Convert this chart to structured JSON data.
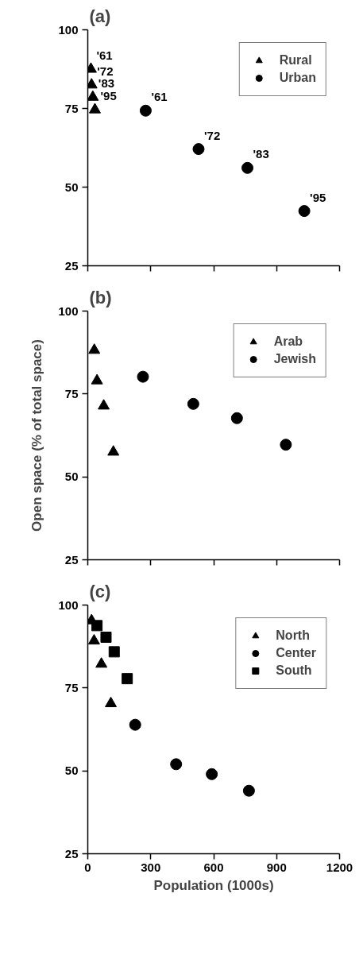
{
  "chart_data": [
    {
      "type": "scatter",
      "title": "(a)",
      "xlim": [
        0,
        1200
      ],
      "ylim": [
        25,
        100
      ],
      "xticks": [
        {
          "value": 0,
          "label": null
        },
        {
          "value": 300,
          "label": null
        },
        {
          "value": 600,
          "label": null
        },
        {
          "value": 900,
          "label": null
        },
        {
          "value": 1200,
          "label": null
        }
      ],
      "yticks": [
        25,
        50,
        75,
        100
      ],
      "tick_labels": "y",
      "legend": "top right",
      "series": [
        {
          "name": "Rural",
          "color": "#000000",
          "marker": "triangle",
          "x": [
            15,
            18,
            24,
            34
          ],
          "values": [
            87.5,
            82.5,
            78.6,
            74.6
          ]
        },
        {
          "name": "Urban",
          "color": "#000000",
          "marker": "circle",
          "x": [
            276,
            528,
            761,
            1032
          ],
          "values": [
            74.3,
            62.1,
            56.1,
            42.4
          ]
        }
      ],
      "annotations": [
        {
          "text": "'61",
          "x": 15,
          "y": 87.5
        },
        {
          "text": "'72",
          "x": 18,
          "y": 82.5
        },
        {
          "text": "'83",
          "x": 24,
          "y": 78.6
        },
        {
          "text": "'95",
          "x": 34,
          "y": 74.6
        },
        {
          "text": "'61",
          "x": 276,
          "y": 74.3
        },
        {
          "text": "'72",
          "x": 528,
          "y": 62.1
        },
        {
          "text": "'83",
          "x": 761,
          "y": 56.1
        },
        {
          "text": "'95",
          "x": 1032,
          "y": 42.4
        }
      ]
    },
    {
      "type": "scatter",
      "title": "(b)",
      "ylabel": "Open space (% of total space)",
      "xlim": [
        0,
        1200
      ],
      "ylim": [
        25,
        100
      ],
      "xticks": [
        {
          "value": 0,
          "label": null
        },
        {
          "value": 300,
          "label": null
        },
        {
          "value": 600,
          "label": null
        },
        {
          "value": 900,
          "label": null
        },
        {
          "value": 1200,
          "label": null
        }
      ],
      "yticks": [
        25,
        50,
        75,
        100
      ],
      "tick_labels": "y",
      "legend": "top right",
      "series": [
        {
          "name": "Arab",
          "color": "#000000",
          "marker": "triangle",
          "x": [
            31,
            44,
            76,
            122
          ],
          "values": [
            88.2,
            79.0,
            71.4,
            57.5
          ]
        },
        {
          "name": "Jewish",
          "color": "#000000",
          "marker": "circle",
          "x": [
            263,
            503,
            711,
            944
          ],
          "values": [
            80.2,
            72.0,
            67.7,
            59.7
          ]
        }
      ]
    },
    {
      "type": "scatter",
      "title": "(c)",
      "xlabel": "Population (1000s)",
      "xlim": [
        0,
        1200
      ],
      "ylim": [
        25,
        100
      ],
      "xticks": [
        0,
        300,
        600,
        900,
        1200
      ],
      "yticks": [
        25,
        50,
        75,
        100
      ],
      "legend": "top right",
      "series": [
        {
          "name": "North",
          "color": "#000000",
          "marker": "triangle",
          "x": [
            18,
            30,
            65,
            110
          ],
          "values": [
            95.3,
            89.2,
            82.2,
            70.3
          ]
        },
        {
          "name": "Center",
          "color": "#000000",
          "marker": "circle",
          "x": [
            226,
            421,
            591,
            768
          ],
          "values": [
            63.9,
            52.0,
            49.0,
            44.0
          ]
        },
        {
          "name": "South",
          "color": "#000000",
          "marker": "square",
          "x": [
            44,
            87,
            126,
            188
          ],
          "values": [
            93.8,
            90.3,
            85.9,
            77.8
          ]
        }
      ]
    }
  ]
}
